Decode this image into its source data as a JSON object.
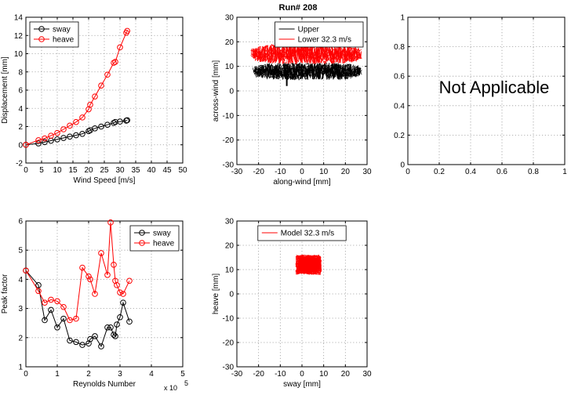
{
  "figure_title": "Run# 208",
  "chart_data": [
    {
      "id": "displacement",
      "type": "line",
      "title": "",
      "xlabel": "Wind Speed [m/s]",
      "ylabel": "Displacement [mm]",
      "xlim": [
        0,
        50
      ],
      "ylim": [
        -2,
        14
      ],
      "xticks": [
        0,
        5,
        10,
        15,
        20,
        25,
        30,
        35,
        40,
        45,
        50
      ],
      "yticks": [
        -2,
        0,
        2,
        4,
        6,
        8,
        10,
        12,
        14
      ],
      "grid": true,
      "legend": "top-left",
      "series": [
        {
          "name": "sway",
          "color": "#000000",
          "x": [
            0,
            4,
            6,
            8,
            10,
            12,
            14,
            16,
            18,
            20,
            20.5,
            22,
            24,
            26,
            28,
            28.5,
            30,
            32,
            32.3
          ],
          "y": [
            0,
            0.15,
            0.3,
            0.45,
            0.6,
            0.75,
            0.9,
            1.05,
            1.2,
            1.5,
            1.6,
            1.8,
            2.0,
            2.2,
            2.4,
            2.5,
            2.55,
            2.65,
            2.7
          ]
        },
        {
          "name": "heave",
          "color": "#ff0000",
          "x": [
            0,
            4,
            6,
            8,
            10,
            12,
            14,
            16,
            18,
            20,
            20.5,
            22,
            24,
            26,
            28,
            28.5,
            30,
            32,
            32.3
          ],
          "y": [
            0,
            0.5,
            0.7,
            1.0,
            1.3,
            1.7,
            2.1,
            2.5,
            3.0,
            3.9,
            4.4,
            5.3,
            6.5,
            7.7,
            9.0,
            9.1,
            10.7,
            12.3,
            12.5
          ]
        }
      ]
    },
    {
      "id": "along-across",
      "type": "scatter",
      "title": "Run# 208",
      "xlabel": "along-wind [mm]",
      "ylabel": "across-wind [mm]",
      "xlim": [
        -30,
        30
      ],
      "ylim": [
        -30,
        30
      ],
      "xticks": [
        -30,
        -20,
        -10,
        0,
        10,
        20,
        30
      ],
      "yticks": [
        -30,
        -20,
        -10,
        0,
        10,
        20,
        30
      ],
      "grid": true,
      "legend": "top-right",
      "series": [
        {
          "name": "Upper",
          "color": "#000000",
          "kind": "trace",
          "x_range": [
            -22,
            27
          ],
          "y_center": 8,
          "y_spread": 3.5,
          "spike": {
            "x": -7,
            "y_min": 2
          }
        },
        {
          "name": "Lower 32.3 m/s",
          "color": "#ff0000",
          "kind": "trace",
          "x_range": [
            -23,
            27
          ],
          "y_center": 15,
          "y_spread": 4
        }
      ]
    },
    {
      "id": "not-applicable",
      "type": "scatter",
      "title": "",
      "annotation": "Not Applicable",
      "xlim": [
        0,
        1
      ],
      "ylim": [
        0,
        1
      ],
      "xticks": [
        0,
        0.2,
        0.4,
        0.6,
        0.8,
        1
      ],
      "yticks": [
        0,
        0.2,
        0.4,
        0.6,
        0.8,
        1
      ],
      "grid": true
    },
    {
      "id": "peak-factor",
      "type": "line",
      "title": "",
      "xlabel": "Reynolds Number",
      "ylabel": "Peak factor",
      "x_exponent": "x 10",
      "x_exponent_power": "5",
      "xlim": [
        0,
        5
      ],
      "ylim": [
        1,
        6
      ],
      "xticks": [
        0,
        1,
        2,
        3,
        4,
        5
      ],
      "yticks": [
        1,
        2,
        3,
        4,
        5,
        6
      ],
      "grid": true,
      "legend": "top-right",
      "series": [
        {
          "name": "sway",
          "color": "#000000",
          "x": [
            0,
            0.4,
            0.6,
            0.8,
            1.0,
            1.2,
            1.4,
            1.6,
            1.8,
            2.0,
            2.05,
            2.2,
            2.4,
            2.6,
            2.7,
            2.8,
            2.85,
            2.9,
            3.0,
            3.1,
            3.3
          ],
          "y": [
            4.3,
            3.8,
            2.6,
            2.95,
            2.35,
            2.65,
            1.9,
            1.85,
            1.75,
            1.8,
            1.95,
            2.05,
            1.7,
            2.35,
            2.35,
            2.1,
            2.05,
            2.45,
            2.7,
            3.2,
            2.55
          ]
        },
        {
          "name": "heave",
          "color": "#ff0000",
          "x": [
            0,
            0.4,
            0.6,
            0.8,
            1.0,
            1.2,
            1.4,
            1.6,
            1.8,
            2.0,
            2.05,
            2.2,
            2.4,
            2.6,
            2.7,
            2.8,
            2.85,
            2.9,
            3.0,
            3.1,
            3.3
          ],
          "y": [
            4.3,
            3.6,
            3.2,
            3.3,
            3.25,
            3.05,
            2.6,
            2.65,
            4.4,
            4.1,
            4.0,
            3.5,
            4.9,
            4.15,
            5.95,
            4.5,
            3.95,
            3.8,
            3.55,
            3.5,
            3.95
          ]
        }
      ]
    },
    {
      "id": "sway-heave",
      "type": "scatter",
      "title": "",
      "xlabel": "sway [mm]",
      "ylabel": "heave [mm]",
      "xlim": [
        -30,
        30
      ],
      "ylim": [
        -30,
        30
      ],
      "xticks": [
        -30,
        -20,
        -10,
        0,
        10,
        20,
        30
      ],
      "yticks": [
        -30,
        -20,
        -10,
        0,
        10,
        20,
        30
      ],
      "grid": true,
      "legend": "top-center",
      "series": [
        {
          "name": "Model 32.3 m/s",
          "color": "#ff0000",
          "kind": "blob",
          "x_range": [
            -3,
            9
          ],
          "y_range": [
            8,
            16
          ],
          "x_center": 3,
          "y_center": 12
        }
      ]
    }
  ]
}
